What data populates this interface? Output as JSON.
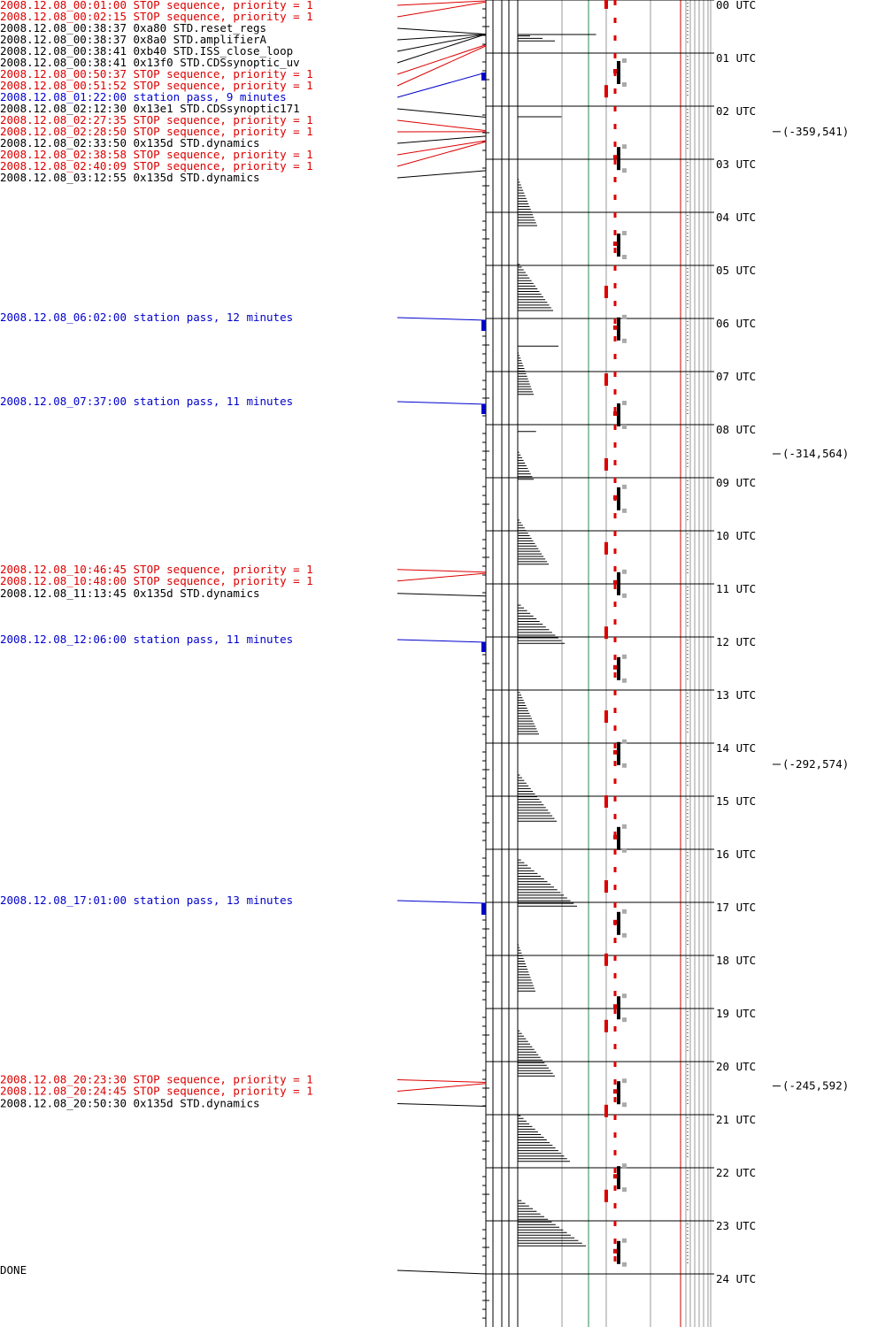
{
  "colors": {
    "stop": "#dd0000",
    "station": "#0000cc",
    "normal": "#000000",
    "green_line": "#2e8b57",
    "red_line": "#cc0000",
    "grey": "#aaaaaa"
  },
  "events": [
    {
      "text": "2008.12.08_00:01:00 STOP sequence, priority = 1",
      "kind": "stop",
      "time": 0.0167
    },
    {
      "text": "2008.12.08_00:02:15 STOP sequence, priority = 1",
      "kind": "stop",
      "time": 0.0375
    },
    {
      "text": "2008.12.08_00:38:37  0xa80 STD.reset_regs",
      "kind": "normal",
      "time": 0.6436
    },
    {
      "text": "2008.12.08_00:38:37  0x8a0 STD.amplifierA",
      "kind": "normal",
      "time": 0.6436
    },
    {
      "text": "2008.12.08_00:38:41  0xb40 STD.ISS_close_loop",
      "kind": "normal",
      "time": 0.6447
    },
    {
      "text": "2008.12.08_00:38:41 0x13f0 STD.CDSsynoptic_uv",
      "kind": "normal",
      "time": 0.6447
    },
    {
      "text": "2008.12.08_00:50:37 STOP sequence, priority = 1",
      "kind": "stop",
      "time": 0.8436
    },
    {
      "text": "2008.12.08_00:51:52 STOP sequence, priority = 1",
      "kind": "stop",
      "time": 0.8644
    },
    {
      "text": "2008.12.08_01:22:00 station pass, 9 minutes",
      "kind": "station",
      "time": 1.3667,
      "duration": 0.15
    },
    {
      "text": "2008.12.08_02:12:30 0x13e1 STD.CDSsynoptic171",
      "kind": "normal",
      "time": 2.2083
    },
    {
      "text": "2008.12.08_02:27:35 STOP sequence, priority = 1",
      "kind": "stop",
      "time": 2.4597
    },
    {
      "text": "2008.12.08_02:28:50 STOP sequence, priority = 1",
      "kind": "stop",
      "time": 2.4806
    },
    {
      "text": "2008.12.08_02:33:50 0x135d STD.dynamics",
      "kind": "normal",
      "time": 2.5639
    },
    {
      "text": "2008.12.08_02:38:58 STOP sequence, priority = 1",
      "kind": "stop",
      "time": 2.6494
    },
    {
      "text": "2008.12.08_02:40:09 STOP sequence, priority = 1",
      "kind": "stop",
      "time": 2.6692
    },
    {
      "text": "2008.12.08_03:12:55 0x135d STD.dynamics",
      "kind": "normal",
      "time": 3.2153
    },
    {
      "text": "2008.12.08_06:02:00 station pass, 12 minutes",
      "kind": "station",
      "time": 6.0333,
      "duration": 0.2
    },
    {
      "text": "2008.12.08_07:37:00 station pass, 11 minutes",
      "kind": "station",
      "time": 7.6167,
      "duration": 0.1833
    },
    {
      "text": "2008.12.08_10:46:45 STOP sequence, priority = 1",
      "kind": "stop",
      "time": 10.7792
    },
    {
      "text": "2008.12.08_10:48:00 STOP sequence, priority = 1",
      "kind": "stop",
      "time": 10.8
    },
    {
      "text": "2008.12.08_11:13:45 0x135d STD.dynamics",
      "kind": "normal",
      "time": 11.2292
    },
    {
      "text": "2008.12.08_12:06:00 station pass, 11 minutes",
      "kind": "station",
      "time": 12.1,
      "duration": 0.1833
    },
    {
      "text": "2008.12.08_17:01:00 station pass, 13 minutes",
      "kind": "station",
      "time": 17.0167,
      "duration": 0.2167
    },
    {
      "text": "2008.12.08_20:23:30 STOP sequence, priority = 1",
      "kind": "stop",
      "time": 20.3917
    },
    {
      "text": "2008.12.08_20:24:45 STOP sequence, priority = 1",
      "kind": "stop",
      "time": 20.4125
    },
    {
      "text": "2008.12.08_20:50:30 0x135d STD.dynamics",
      "kind": "normal",
      "time": 20.8417
    },
    {
      "text": "DONE",
      "kind": "normal",
      "time": 24.0
    }
  ],
  "chart_data": {
    "type": "timeline",
    "hours": [
      "00 UTC",
      "01 UTC",
      "02 UTC",
      "03 UTC",
      "04 UTC",
      "05 UTC",
      "06 UTC",
      "07 UTC",
      "08 UTC",
      "09 UTC",
      "10 UTC",
      "11 UTC",
      "12 UTC",
      "13 UTC",
      "14 UTC",
      "15 UTC",
      "16 UTC",
      "17 UTC",
      "18 UTC",
      "19 UTC",
      "20 UTC",
      "21 UTC",
      "22 UTC",
      "23 UTC",
      "24 UTC"
    ],
    "orbit_labels": [
      {
        "text": "(-359,541)",
        "time": 2.48
      },
      {
        "text": "(-314,564)",
        "time": 8.55
      },
      {
        "text": "(-292,574)",
        "time": 14.4
      },
      {
        "text": "(-245,592)",
        "time": 20.46
      }
    ],
    "triangles": [
      {
        "start": 0.63,
        "end": 0.77,
        "max": 0.42
      },
      {
        "start": 3.33,
        "end": 4.25,
        "max": 0.22
      },
      {
        "start": 4.93,
        "end": 5.85,
        "max": 0.4
      },
      {
        "start": 6.6,
        "end": 7.43,
        "max": 0.18
      },
      {
        "start": 8.47,
        "end": 9.03,
        "max": 0.18
      },
      {
        "start": 9.75,
        "end": 10.63,
        "max": 0.35
      },
      {
        "start": 11.35,
        "end": 12.12,
        "max": 0.53
      },
      {
        "start": 12.95,
        "end": 13.83,
        "max": 0.24
      },
      {
        "start": 14.55,
        "end": 15.47,
        "max": 0.44
      },
      {
        "start": 16.15,
        "end": 17.07,
        "max": 0.67
      },
      {
        "start": 17.75,
        "end": 18.67,
        "max": 0.2
      },
      {
        "start": 19.37,
        "end": 20.27,
        "max": 0.42
      },
      {
        "start": 20.97,
        "end": 21.88,
        "max": 0.59
      },
      {
        "start": 22.57,
        "end": 23.47,
        "max": 0.77
      }
    ],
    "thin_bars": [
      {
        "time": 0.65,
        "len": 0.77
      },
      {
        "time": 2.2,
        "len": 0.43
      },
      {
        "time": 6.52,
        "len": 0.4
      },
      {
        "time": 8.13,
        "len": 0.18
      }
    ],
    "red_blocks": [
      0.05,
      1.72,
      5.5,
      7.15,
      8.75,
      10.33,
      11.92,
      13.5,
      15.1,
      16.7,
      18.08,
      19.33,
      20.93,
      22.53
    ],
    "orbit_markers": [
      1.35,
      2.97,
      4.6,
      6.18,
      7.8,
      9.38,
      10.98,
      12.58,
      14.18,
      15.78,
      17.38,
      18.97,
      20.57,
      22.17,
      23.58
    ]
  }
}
